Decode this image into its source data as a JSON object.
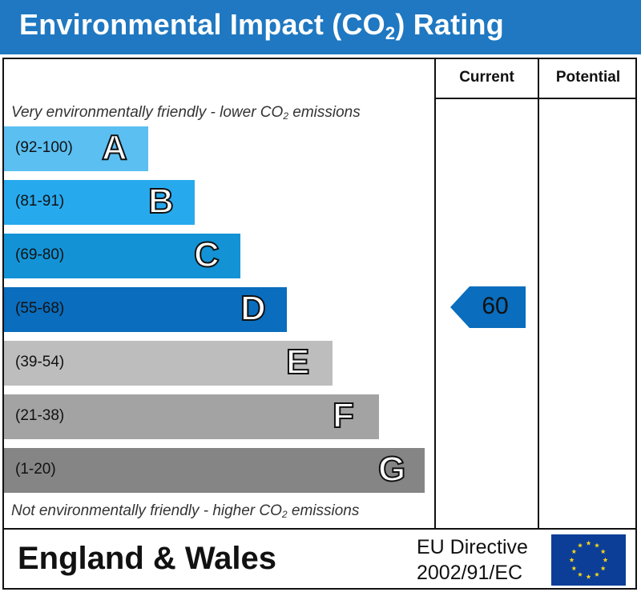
{
  "title": {
    "prefix": "Environmental Impact (CO",
    "sub": "2",
    "suffix": ") Rating"
  },
  "columns": {
    "current": "Current",
    "potential": "Potential"
  },
  "top_note": {
    "prefix": "Very environmentally friendly - lower CO",
    "sub": "2",
    "suffix": " emissions"
  },
  "bottom_note": {
    "prefix": "Not environmentally friendly - higher CO",
    "sub": "2",
    "suffix": " emissions"
  },
  "footer": {
    "region": "England & Wales",
    "directive_line1": "EU Directive",
    "directive_line2": "2002/91/EC"
  },
  "chart_data": {
    "type": "bar",
    "bands": [
      {
        "letter": "A",
        "range": "(92-100)",
        "color": "#5bbff1"
      },
      {
        "letter": "B",
        "range": "(81-91)",
        "color": "#27a9ee"
      },
      {
        "letter": "C",
        "range": "(69-80)",
        "color": "#1393d6"
      },
      {
        "letter": "D",
        "range": "(55-68)",
        "color": "#0a6dbd"
      },
      {
        "letter": "E",
        "range": "(39-54)",
        "color": "#bdbdbd"
      },
      {
        "letter": "F",
        "range": "(21-38)",
        "color": "#a3a3a3"
      },
      {
        "letter": "G",
        "range": "(1-20)",
        "color": "#858585"
      }
    ],
    "current": {
      "value": 60,
      "label": "60",
      "band": "D",
      "color": "#0a6dbd"
    },
    "potential": null
  },
  "colors": {
    "header": "#1f78c1",
    "flag_blue": "#0c3e98",
    "flag_star": "#f7d417"
  }
}
